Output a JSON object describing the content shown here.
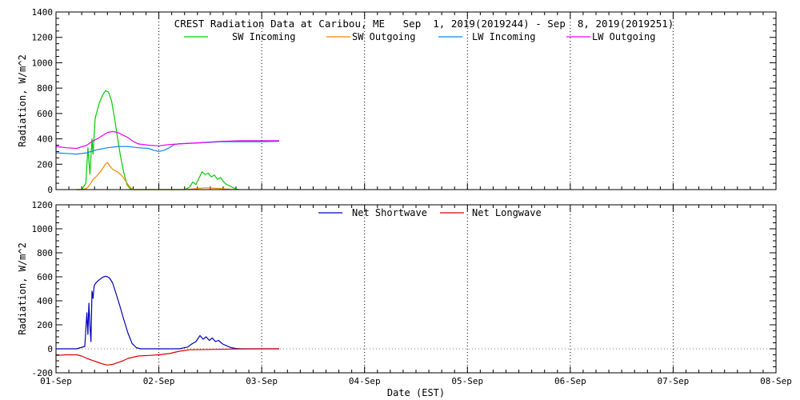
{
  "colors": {
    "sw_incoming": "#00cc00",
    "sw_outgoing": "#ee8800",
    "lw_incoming": "#1188dd",
    "lw_outgoing": "#ee00ee",
    "net_shortwave": "#0000bb",
    "net_longwave": "#dd0000",
    "frame": "#000000",
    "grid": "#000000"
  },
  "chart_data": [
    {
      "type": "line",
      "title": "CREST Radiation Data at Caribou, ME   Sep  1, 2019(2019244) - Sep  8, 2019(2019251)",
      "xlabel": "",
      "ylabel": "Radiation, W/m^2",
      "ylim": [
        0,
        1400
      ],
      "yticks": [
        0,
        200,
        400,
        600,
        800,
        1000,
        1200,
        1400
      ],
      "xlim_days": [
        0,
        7
      ],
      "xtick_labels": [
        "01-Sep",
        "02-Sep",
        "03-Sep",
        "04-Sep",
        "05-Sep",
        "06-Sep",
        "07-Sep",
        "08-Sep"
      ],
      "grid": "dotted vertical at day boundaries",
      "legend_position": "top",
      "x_units": "days since 01-Sep 00:00 EST",
      "series": [
        {
          "name": "SW Incoming",
          "color_key": "sw_incoming",
          "x": [
            0.2,
            0.25,
            0.29,
            0.31,
            0.33,
            0.35,
            0.36,
            0.38,
            0.4,
            0.42,
            0.45,
            0.48,
            0.51,
            0.54,
            0.57,
            0.6,
            0.63,
            0.66,
            0.69,
            0.72,
            0.75,
            0.78,
            1.2,
            1.25,
            1.3,
            1.33,
            1.36,
            1.39,
            1.42,
            1.45,
            1.48,
            1.51,
            1.54,
            1.57,
            1.6,
            1.63,
            1.66,
            1.69,
            1.72,
            1.75,
            1.78
          ],
          "y": [
            0,
            0,
            50,
            330,
            120,
            400,
            280,
            560,
            620,
            680,
            740,
            780,
            770,
            700,
            560,
            400,
            250,
            130,
            40,
            5,
            0,
            0,
            0,
            0,
            20,
            60,
            40,
            90,
            140,
            120,
            130,
            100,
            115,
            80,
            95,
            60,
            40,
            30,
            15,
            5,
            0
          ]
        },
        {
          "name": "SW Outgoing",
          "color_key": "sw_outgoing",
          "x": [
            0.2,
            0.25,
            0.3,
            0.33,
            0.36,
            0.4,
            0.44,
            0.48,
            0.5,
            0.52,
            0.55,
            0.6,
            0.65,
            0.7,
            0.73,
            0.76,
            1.25,
            1.3,
            1.35,
            1.4,
            1.45,
            1.5,
            1.55,
            1.6,
            1.65,
            1.7,
            1.75
          ],
          "y": [
            0,
            0,
            10,
            40,
            80,
            110,
            150,
            200,
            215,
            190,
            160,
            140,
            100,
            40,
            10,
            0,
            0,
            3,
            6,
            10,
            14,
            12,
            10,
            8,
            5,
            2,
            0
          ]
        },
        {
          "name": "LW Incoming",
          "color_key": "lw_incoming",
          "x": [
            0,
            0.1,
            0.2,
            0.3,
            0.4,
            0.5,
            0.6,
            0.7,
            0.8,
            0.9,
            0.95,
            1.0,
            1.05,
            1.1,
            1.15,
            1.2,
            1.3,
            1.4,
            1.6,
            1.8,
            2.0,
            2.17
          ],
          "y": [
            290,
            285,
            280,
            290,
            315,
            330,
            340,
            340,
            330,
            325,
            310,
            300,
            310,
            330,
            355,
            362,
            365,
            368,
            378,
            378,
            378,
            380
          ]
        },
        {
          "name": "LW Outgoing",
          "color_key": "lw_outgoing",
          "x": [
            0,
            0.1,
            0.2,
            0.3,
            0.35,
            0.4,
            0.45,
            0.5,
            0.55,
            0.6,
            0.65,
            0.7,
            0.75,
            0.8,
            0.9,
            1.0,
            1.05,
            1.1,
            1.2,
            1.3,
            1.4,
            1.6,
            1.8,
            2.0,
            2.17
          ],
          "y": [
            340,
            330,
            325,
            350,
            380,
            400,
            425,
            450,
            458,
            450,
            430,
            410,
            380,
            360,
            350,
            345,
            350,
            355,
            360,
            365,
            370,
            380,
            385,
            385,
            385
          ]
        }
      ]
    },
    {
      "type": "line",
      "title": "",
      "xlabel": "Date (EST)",
      "ylabel": "Radiation, W/m^2",
      "ylim": [
        -200,
        1200
      ],
      "yticks": [
        -200,
        0,
        200,
        400,
        600,
        800,
        1000,
        1200
      ],
      "xlim_days": [
        0,
        7
      ],
      "xtick_labels": [
        "01-Sep",
        "02-Sep",
        "03-Sep",
        "04-Sep",
        "05-Sep",
        "06-Sep",
        "07-Sep",
        "08-Sep"
      ],
      "grid": "dotted vertical at day boundaries",
      "legend_position": "top",
      "x_units": "days since 01-Sep 00:00 EST",
      "series": [
        {
          "name": "Net Shortwave",
          "color_key": "net_shortwave",
          "x": [
            0,
            0.2,
            0.28,
            0.3,
            0.31,
            0.32,
            0.33,
            0.34,
            0.35,
            0.36,
            0.37,
            0.38,
            0.4,
            0.42,
            0.45,
            0.48,
            0.5,
            0.52,
            0.55,
            0.58,
            0.62,
            0.66,
            0.7,
            0.74,
            0.78,
            0.82,
            1.0,
            1.2,
            1.28,
            1.32,
            1.36,
            1.4,
            1.43,
            1.46,
            1.49,
            1.52,
            1.55,
            1.58,
            1.62,
            1.66,
            1.7,
            1.75,
            1.8,
            1.9,
            2.0,
            2.17
          ],
          "y": [
            0,
            0,
            20,
            300,
            120,
            380,
            200,
            60,
            480,
            420,
            520,
            540,
            560,
            575,
            595,
            605,
            600,
            590,
            550,
            470,
            360,
            240,
            130,
            45,
            10,
            0,
            0,
            0,
            15,
            40,
            60,
            110,
            80,
            100,
            70,
            90,
            60,
            70,
            40,
            25,
            10,
            3,
            0,
            0,
            0,
            0
          ]
        },
        {
          "name": "Net Longwave",
          "color_key": "net_longwave",
          "x": [
            0,
            0.1,
            0.2,
            0.25,
            0.3,
            0.35,
            0.4,
            0.45,
            0.5,
            0.55,
            0.6,
            0.65,
            0.7,
            0.8,
            0.9,
            1.0,
            1.1,
            1.2,
            1.3,
            1.5,
            1.7,
            2.0,
            2.17
          ],
          "y": [
            -55,
            -50,
            -50,
            -60,
            -80,
            -95,
            -110,
            -125,
            -135,
            -130,
            -115,
            -100,
            -80,
            -60,
            -55,
            -50,
            -40,
            -20,
            -8,
            -5,
            -2,
            0,
            0
          ]
        }
      ]
    }
  ]
}
